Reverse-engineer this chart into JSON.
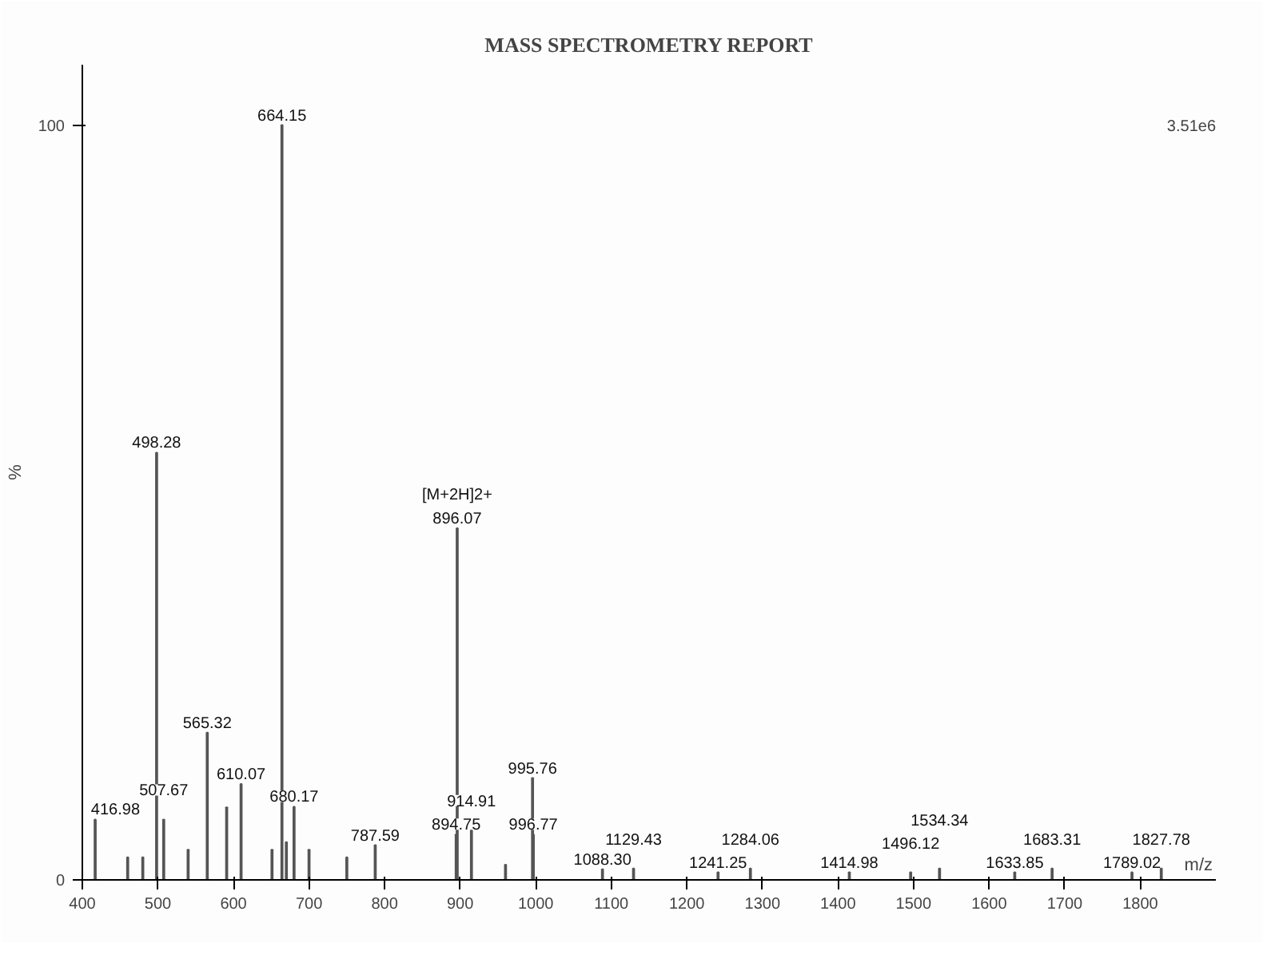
{
  "chart_data": {
    "type": "bar",
    "title": "MASS SPECTROMETRY REPORT",
    "xlabel": "m/z",
    "ylabel": "%",
    "x": [
      416.98,
      460,
      480,
      498.28,
      507.67,
      540,
      565.32,
      591,
      610.07,
      651,
      664.15,
      670,
      680.17,
      700,
      750,
      787.59,
      894.75,
      896.07,
      914.91,
      960,
      995.76,
      996.77,
      1088.3,
      1129.43,
      1241.25,
      1284.06,
      1414.98,
      1496.12,
      1534.34,
      1633.85,
      1683.31,
      1789.02,
      1827.78
    ],
    "values": [
      8,
      3,
      3,
      56.6,
      8,
      4,
      19.5,
      9.6,
      12.7,
      4,
      100,
      5,
      9.7,
      4,
      3,
      4.6,
      6,
      46.6,
      6.6,
      2,
      13.5,
      6,
      1.4,
      1.5,
      1,
      1.5,
      1,
      1,
      1.5,
      1,
      1.5,
      1,
      1.5
    ],
    "color": "#555555",
    "xlim": [
      400,
      1900
    ],
    "xticks": [
      400,
      500,
      600,
      700,
      800,
      900,
      1000,
      1100,
      1200,
      1300,
      1400,
      1500,
      1600,
      1700,
      1800
    ],
    "ylim": [
      0,
      108
    ],
    "yticks": [
      0,
      100
    ],
    "annotations": [
      {
        "text": "416.98",
        "x": 416.98,
        "y": 8
      },
      {
        "text": "498.28",
        "x": 498.28,
        "y": 56.6
      },
      {
        "text": "507.67",
        "x": 507.67,
        "y": 8
      },
      {
        "text": "565.32",
        "x": 565.32,
        "y": 19.5
      },
      {
        "text": "610.07",
        "x": 610.07,
        "y": 12.7
      },
      {
        "text": "664.15",
        "x": 664.15,
        "y": 100
      },
      {
        "text": "680.17",
        "x": 680.17,
        "y": 9.7
      },
      {
        "text": "787.59",
        "x": 787.59,
        "y": 4.6
      },
      {
        "text": "894.75",
        "x": 894.75,
        "y": 6
      },
      {
        "text": "896.07",
        "x": 896.07,
        "y": 46.6
      },
      {
        "text": "[M+2H]2+",
        "x": 896.07,
        "y": 46.6
      },
      {
        "text": "914.91",
        "x": 914.91,
        "y": 6.6
      },
      {
        "text": "995.76",
        "x": 995.76,
        "y": 13.5
      },
      {
        "text": "996.77",
        "x": 996.77,
        "y": 6
      },
      {
        "text": "1088.30",
        "x": 1088.3,
        "y": 1.4
      },
      {
        "text": "1129.43",
        "x": 1129.43,
        "y": 1.5
      },
      {
        "text": "1241.25",
        "x": 1241.25,
        "y": 1
      },
      {
        "text": "1284.06",
        "x": 1284.06,
        "y": 1.5
      },
      {
        "text": "1414.98",
        "x": 1414.98,
        "y": 1
      },
      {
        "text": "1496.12",
        "x": 1496.12,
        "y": 1
      },
      {
        "text": "1534.34",
        "x": 1534.34,
        "y": 1.5
      },
      {
        "text": "1633.85",
        "x": 1633.85,
        "y": 1
      },
      {
        "text": "1683.31",
        "x": 1683.31,
        "y": 1.5
      },
      {
        "text": "1789.02",
        "x": 1789.02,
        "y": 1
      },
      {
        "text": "1827.78",
        "x": 1827.78,
        "y": 1.5
      },
      "3.51e6"
    ],
    "grid": false
  }
}
